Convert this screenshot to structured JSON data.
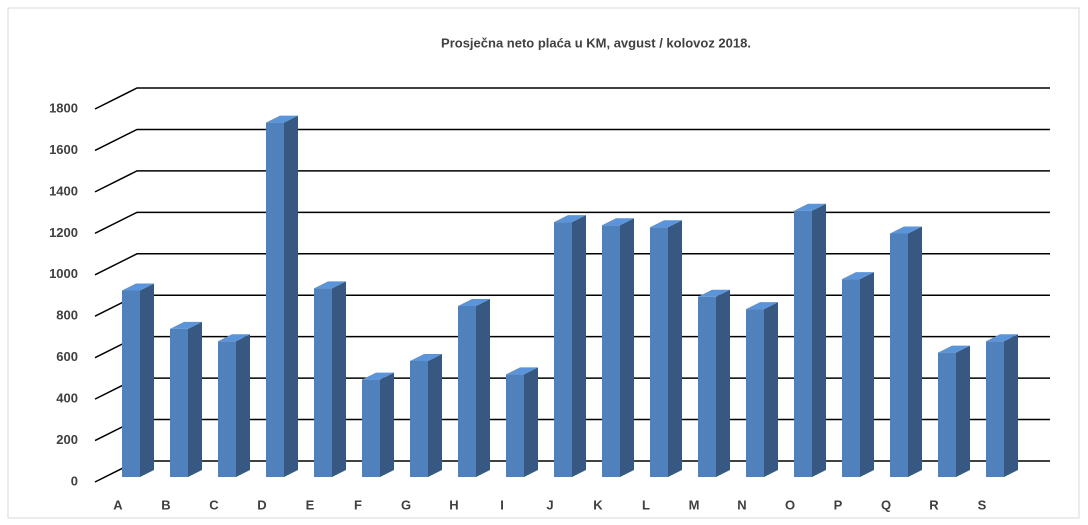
{
  "chart_data": {
    "type": "bar",
    "title": "Prosječna neto plaća u KM, avgust / kolovoz 2018.",
    "categories": [
      "A",
      "B",
      "C",
      "D",
      "E",
      "F",
      "G",
      "H",
      "I",
      "J",
      "K",
      "L",
      "M",
      "N",
      "O",
      "P",
      "Q",
      "R",
      "S"
    ],
    "values": [
      900,
      715,
      655,
      1710,
      910,
      470,
      560,
      825,
      495,
      1230,
      1215,
      1205,
      870,
      810,
      1285,
      955,
      1175,
      600,
      655
    ],
    "color": "#4f81bd",
    "ylim": [
      0,
      1800
    ],
    "yticks": [
      0,
      200,
      400,
      600,
      800,
      1000,
      1200,
      1400,
      1600,
      1800
    ],
    "grid": true
  }
}
